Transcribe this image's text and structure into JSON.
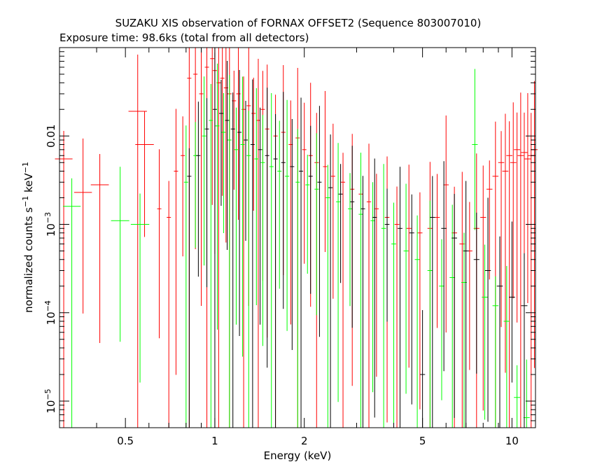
{
  "chart_data": {
    "type": "scatter",
    "title": "SUZAKU XIS observation of FORNAX OFFSET2 (Sequence 803007010)",
    "subtitle": "Exposure time: 98.6ks (total from all detectors)",
    "xlabel": "Energy (keV)",
    "ylabel": {
      "pre": "normalized counts s",
      "exp1": "−1",
      "mid": " keV",
      "exp2": "−1"
    },
    "x_scale": "log",
    "y_scale": "log",
    "xlim": [
      0.3,
      12
    ],
    "ylim": [
      5e-06,
      0.1
    ],
    "x_ticks": [
      {
        "value": 0.5,
        "label": "0.5"
      },
      {
        "value": 1,
        "label": "1"
      },
      {
        "value": 2,
        "label": "2"
      },
      {
        "value": 5,
        "label": "5"
      },
      {
        "value": 10,
        "label": "10"
      }
    ],
    "y_ticks": [
      {
        "value": 0.01,
        "label": "0.01"
      },
      {
        "value": 0.001,
        "label": "10",
        "exp": "−3"
      },
      {
        "value": 0.0001,
        "label": "10",
        "exp": "−4"
      },
      {
        "value": 1e-05,
        "label": "10",
        "exp": "−5"
      }
    ],
    "grid": false,
    "colors": {
      "XIS0": "#000000",
      "XIS1": "#ff0000",
      "XIS3": "#00ff00"
    },
    "series": [
      {
        "color": "#ff0000",
        "points": [
          [
            0.31,
            0.0055
          ],
          [
            0.36,
            0.0023
          ],
          [
            0.41,
            0.0028
          ],
          [
            0.55,
            0.019
          ],
          [
            0.58,
            0.008
          ],
          [
            0.65,
            0.0015
          ],
          [
            0.7,
            0.0012
          ],
          [
            0.74,
            0.004
          ],
          [
            0.78,
            0.006
          ],
          [
            0.82,
            0.045
          ],
          [
            0.86,
            0.05
          ],
          [
            0.9,
            0.03
          ],
          [
            0.94,
            0.06
          ],
          [
            0.98,
            0.075
          ],
          [
            1.0,
            0.055
          ],
          [
            1.03,
            0.04
          ],
          [
            1.06,
            0.045
          ],
          [
            1.09,
            0.035
          ],
          [
            1.12,
            0.03
          ],
          [
            1.16,
            0.025
          ],
          [
            1.2,
            0.03
          ],
          [
            1.25,
            0.02
          ],
          [
            1.3,
            0.022
          ],
          [
            1.35,
            0.018
          ],
          [
            1.4,
            0.015
          ],
          [
            1.45,
            0.02
          ],
          [
            1.5,
            0.012
          ],
          [
            1.6,
            0.01
          ],
          [
            1.7,
            0.011
          ],
          [
            1.8,
            0.008
          ],
          [
            1.9,
            0.0095
          ],
          [
            2.0,
            0.007
          ],
          [
            2.1,
            0.006
          ],
          [
            2.2,
            0.005
          ],
          [
            2.35,
            0.0045
          ],
          [
            2.5,
            0.0035
          ],
          [
            2.7,
            0.003
          ],
          [
            2.9,
            0.0025
          ],
          [
            3.1,
            0.0022
          ],
          [
            3.3,
            0.0018
          ],
          [
            3.5,
            0.0015
          ],
          [
            3.8,
            0.0012
          ],
          [
            4.1,
            0.001
          ],
          [
            4.5,
            0.0009
          ],
          [
            4.9,
            0.0008
          ],
          [
            5.3,
            0.0009
          ],
          [
            5.6,
            0.0012
          ],
          [
            6.0,
            0.0028
          ],
          [
            6.4,
            0.0008
          ],
          [
            6.8,
            0.0006
          ],
          [
            7.2,
            0.0005
          ],
          [
            7.6,
            0.0009
          ],
          [
            8.0,
            0.0012
          ],
          [
            8.4,
            0.0025
          ],
          [
            8.8,
            0.0035
          ],
          [
            9.2,
            0.005
          ],
          [
            9.5,
            0.004
          ],
          [
            9.8,
            0.006
          ],
          [
            10.1,
            0.005
          ],
          [
            10.4,
            0.007
          ],
          [
            10.7,
            0.006
          ],
          [
            11.0,
            0.0065
          ],
          [
            11.3,
            0.0055
          ],
          [
            11.6,
            0.006
          ],
          [
            11.9,
            0.007
          ]
        ]
      },
      {
        "color": "#00ff00",
        "points": [
          [
            0.33,
            0.0016
          ],
          [
            0.48,
            0.0011
          ],
          [
            0.56,
            0.001
          ],
          [
            0.8,
            0.003
          ],
          [
            0.86,
            0.006
          ],
          [
            0.92,
            0.01
          ],
          [
            0.97,
            0.015
          ],
          [
            1.02,
            0.013
          ],
          [
            1.07,
            0.011
          ],
          [
            1.12,
            0.009
          ],
          [
            1.18,
            0.007
          ],
          [
            1.24,
            0.008
          ],
          [
            1.3,
            0.006
          ],
          [
            1.38,
            0.0055
          ],
          [
            1.45,
            0.005
          ],
          [
            1.55,
            0.0045
          ],
          [
            1.65,
            0.004
          ],
          [
            1.75,
            0.0035
          ],
          [
            1.9,
            0.003
          ],
          [
            2.05,
            0.0028
          ],
          [
            2.2,
            0.0025
          ],
          [
            2.4,
            0.002
          ],
          [
            2.6,
            0.0018
          ],
          [
            2.85,
            0.0015
          ],
          [
            3.1,
            0.0013
          ],
          [
            3.4,
            0.0011
          ],
          [
            3.7,
            0.0009
          ],
          [
            4.0,
            0.0006
          ],
          [
            4.4,
            0.0005
          ],
          [
            4.8,
            0.0004
          ],
          [
            5.3,
            0.0003
          ],
          [
            5.8,
            0.0002
          ],
          [
            6.3,
            0.00025
          ],
          [
            6.9,
            0.00022
          ],
          [
            7.5,
            0.008
          ],
          [
            8.1,
            0.00015
          ],
          [
            8.8,
            0.00012
          ],
          [
            9.6,
            8e-05
          ],
          [
            10.4,
            1.1e-05
          ],
          [
            11.2,
            6.5e-06
          ]
        ]
      },
      {
        "color": "#000000",
        "points": [
          [
            0.82,
            0.0035
          ],
          [
            0.88,
            0.006
          ],
          [
            0.94,
            0.012
          ],
          [
            1.0,
            0.02
          ],
          [
            1.05,
            0.018
          ],
          [
            1.1,
            0.015
          ],
          [
            1.15,
            0.012
          ],
          [
            1.21,
            0.011
          ],
          [
            1.27,
            0.009
          ],
          [
            1.34,
            0.008
          ],
          [
            1.42,
            0.007
          ],
          [
            1.5,
            0.006
          ],
          [
            1.6,
            0.0055
          ],
          [
            1.7,
            0.005
          ],
          [
            1.82,
            0.0045
          ],
          [
            1.95,
            0.004
          ],
          [
            2.1,
            0.0035
          ],
          [
            2.25,
            0.003
          ],
          [
            2.45,
            0.0026
          ],
          [
            2.65,
            0.0022
          ],
          [
            2.9,
            0.0018
          ],
          [
            3.15,
            0.0015
          ],
          [
            3.45,
            0.0012
          ],
          [
            3.8,
            0.001
          ],
          [
            4.2,
            0.0009
          ],
          [
            4.6,
            0.0008
          ],
          [
            5.0,
            2e-05
          ],
          [
            5.4,
            0.0012
          ],
          [
            5.9,
            0.0009
          ],
          [
            6.4,
            0.0007
          ],
          [
            7.0,
            0.0005
          ],
          [
            7.6,
            0.0004
          ],
          [
            8.3,
            0.0003
          ],
          [
            9.1,
            0.0002
          ],
          [
            10.0,
            0.00015
          ],
          [
            11.0,
            0.00012
          ]
        ]
      }
    ]
  }
}
